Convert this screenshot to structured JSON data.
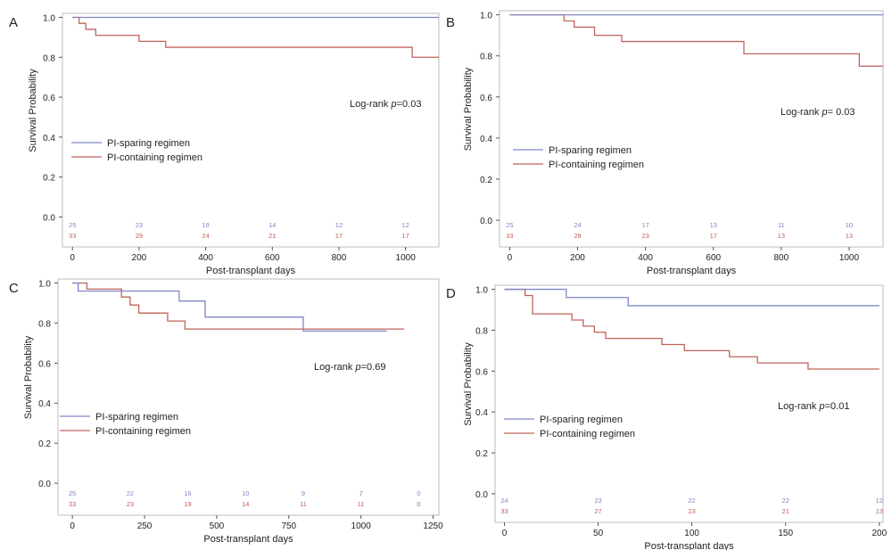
{
  "colors": {
    "sparing": "#7f86c8",
    "containing": "#c0635a",
    "frame": "#bdbdbd",
    "text": "#222222"
  },
  "chart_data": [
    {
      "panel": "A",
      "type": "line",
      "step": true,
      "xlabel": "Post-transplant days",
      "ylabel": "Survival Probability",
      "xlim": [
        -30,
        1100
      ],
      "ylim": [
        -0.15,
        1.02
      ],
      "xticks": [
        0,
        200,
        400,
        600,
        800,
        1000
      ],
      "yticks": [
        0.0,
        0.2,
        0.4,
        0.6,
        0.8,
        1.0
      ],
      "yprec": 1,
      "annotation": {
        "prefix": "Log-rank ",
        "p": "p",
        "value": "=0.03"
      },
      "legend_position": "left-middle",
      "series": [
        {
          "name": "PI-sparing regimen",
          "color_key": "sparing",
          "x": [
            0,
            1100
          ],
          "y": [
            1.0,
            1.0
          ]
        },
        {
          "name": "PI-containing regimen",
          "color_key": "containing",
          "x": [
            0,
            20,
            40,
            70,
            200,
            280,
            1020,
            1100
          ],
          "y": [
            1.0,
            0.97,
            0.94,
            0.91,
            0.88,
            0.85,
            0.8,
            0.8
          ]
        }
      ],
      "risk_table": {
        "x": [
          0,
          200,
          400,
          600,
          800,
          1000
        ],
        "sparing": [
          "25",
          "23",
          "19",
          "14",
          "12",
          "12"
        ],
        "containing": [
          "33",
          "29",
          "24",
          "21",
          "17",
          "17"
        ]
      }
    },
    {
      "panel": "B",
      "type": "line",
      "step": true,
      "xlabel": "Post-transplant days",
      "ylabel": "Survival Probability",
      "xlim": [
        -30,
        1100
      ],
      "ylim": [
        -0.13,
        1.02
      ],
      "xticks": [
        0,
        200,
        400,
        600,
        800,
        1000
      ],
      "yticks": [
        0.0,
        0.2,
        0.4,
        0.6,
        0.8,
        1.0
      ],
      "yprec": 1,
      "annotation": {
        "prefix": "Log-rank ",
        "p": "p",
        "value": "= 0.03"
      },
      "legend_position": "left-middle",
      "series": [
        {
          "name": "PI-sparing regimen",
          "color_key": "sparing",
          "x": [
            0,
            1100
          ],
          "y": [
            1.0,
            1.0
          ]
        },
        {
          "name": "PI-containing regimen",
          "color_key": "containing",
          "x": [
            0,
            160,
            190,
            250,
            330,
            690,
            1030,
            1100
          ],
          "y": [
            1.0,
            0.97,
            0.94,
            0.9,
            0.87,
            0.81,
            0.75,
            0.75
          ]
        }
      ],
      "risk_table": {
        "x": [
          0,
          200,
          400,
          600,
          800,
          1000
        ],
        "sparing": [
          "25",
          "24",
          "17",
          "13",
          "11",
          "10"
        ],
        "containing": [
          "33",
          "28",
          "23",
          "17",
          "13",
          "13"
        ]
      }
    },
    {
      "panel": "C",
      "type": "line",
      "step": true,
      "xlabel": "Post-transplant days",
      "ylabel": "Survival Probability",
      "xlim": [
        -50,
        1270
      ],
      "ylim": [
        -0.16,
        1.02
      ],
      "xticks": [
        0,
        250,
        500,
        750,
        1000,
        1250
      ],
      "yticks": [
        0.0,
        0.2,
        0.4,
        0.6,
        0.8,
        1.0
      ],
      "yprec": 1,
      "annotation": {
        "prefix": "Log-rank ",
        "p": "p",
        "value": "=0.69"
      },
      "legend_position": "left-middle",
      "series": [
        {
          "name": "PI-sparing regimen",
          "color_key": "sparing",
          "x": [
            0,
            20,
            370,
            460,
            800,
            1090
          ],
          "y": [
            1.0,
            0.96,
            0.91,
            0.83,
            0.76,
            0.76
          ]
        },
        {
          "name": "PI-containing regimen",
          "color_key": "containing",
          "x": [
            0,
            50,
            170,
            200,
            230,
            330,
            390,
            1150
          ],
          "y": [
            1.0,
            0.97,
            0.93,
            0.89,
            0.85,
            0.81,
            0.77,
            0.77
          ]
        }
      ],
      "risk_table": {
        "x": [
          0,
          200,
          400,
          600,
          800,
          1000,
          1200
        ],
        "sparing": [
          "25",
          "22",
          "16",
          "10",
          "9",
          "7",
          "0"
        ],
        "containing": [
          "33",
          "23",
          "19",
          "14",
          "11",
          "11",
          "0"
        ]
      }
    },
    {
      "panel": "D",
      "type": "line",
      "step": true,
      "xlabel": "Post-transplant days",
      "ylabel": "Survival Probability",
      "xlim": [
        -5,
        202
      ],
      "ylim": [
        -0.14,
        1.02
      ],
      "xticks": [
        0,
        50,
        100,
        150,
        200
      ],
      "yticks": [
        0.0,
        0.2,
        0.4,
        0.6,
        0.8,
        1.0
      ],
      "yprec": 1,
      "annotation": {
        "prefix": "Log-rank ",
        "p": "p",
        "value": "=0.01"
      },
      "legend_position": "left-bottom",
      "series": [
        {
          "name": "PI-sparing regimen",
          "color_key": "sparing",
          "x": [
            0,
            33,
            66,
            200
          ],
          "y": [
            1.0,
            0.96,
            0.92,
            0.92
          ]
        },
        {
          "name": "PI-containing regimen",
          "color_key": "containing",
          "x": [
            0,
            11,
            15,
            36,
            42,
            48,
            54,
            63,
            72,
            84,
            96,
            120,
            135,
            162,
            200
          ],
          "y": [
            1.0,
            0.97,
            0.88,
            0.85,
            0.82,
            0.79,
            0.76,
            0.76,
            0.76,
            0.73,
            0.7,
            0.67,
            0.64,
            0.61,
            0.61
          ]
        }
      ],
      "risk_table": {
        "x": [
          0,
          50,
          100,
          150,
          200
        ],
        "sparing": [
          "24",
          "23",
          "22",
          "22",
          "12"
        ],
        "containing": [
          "33",
          "27",
          "23",
          "21",
          "13"
        ]
      }
    }
  ]
}
